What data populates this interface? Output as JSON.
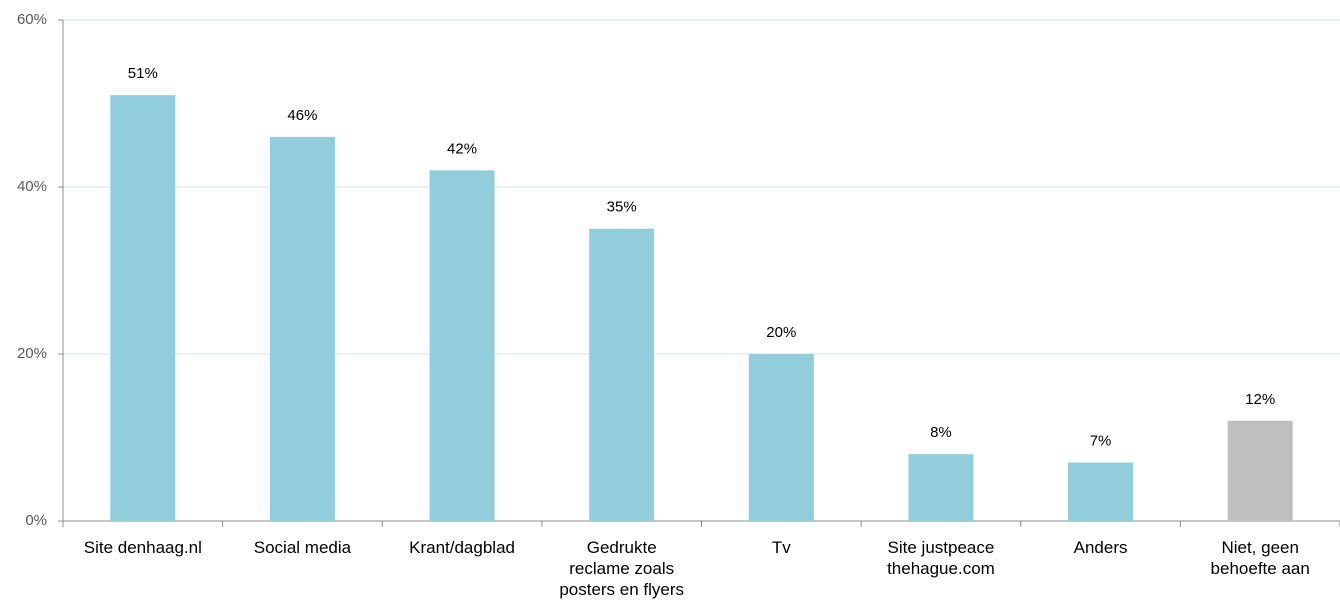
{
  "chart_data": {
    "type": "bar",
    "categories": [
      "Site denhaag.nl",
      "Social media",
      "Krant/dagblad",
      "Gedrukte\nreclame zoals\nposters en flyers",
      "Tv",
      "Site justpeace\nthehague.com",
      "Anders",
      "Niet, geen\nbehoefte aan"
    ],
    "values": [
      51,
      46,
      42,
      35,
      20,
      8,
      7,
      12
    ],
    "value_labels": [
      "51%",
      "46%",
      "42%",
      "35%",
      "20%",
      "8%",
      "7%",
      "12%"
    ],
    "colors": [
      "#92cddc",
      "#92cddc",
      "#92cddc",
      "#92cddc",
      "#92cddc",
      "#92cddc",
      "#92cddc",
      "#bfbfbf"
    ],
    "ylim": [
      0,
      60
    ],
    "yticks": [
      {
        "value": 0,
        "label": "0%"
      },
      {
        "value": 20,
        "label": "20%"
      },
      {
        "value": 40,
        "label": "40%"
      },
      {
        "value": 60,
        "label": "60%"
      }
    ],
    "grid": true
  }
}
